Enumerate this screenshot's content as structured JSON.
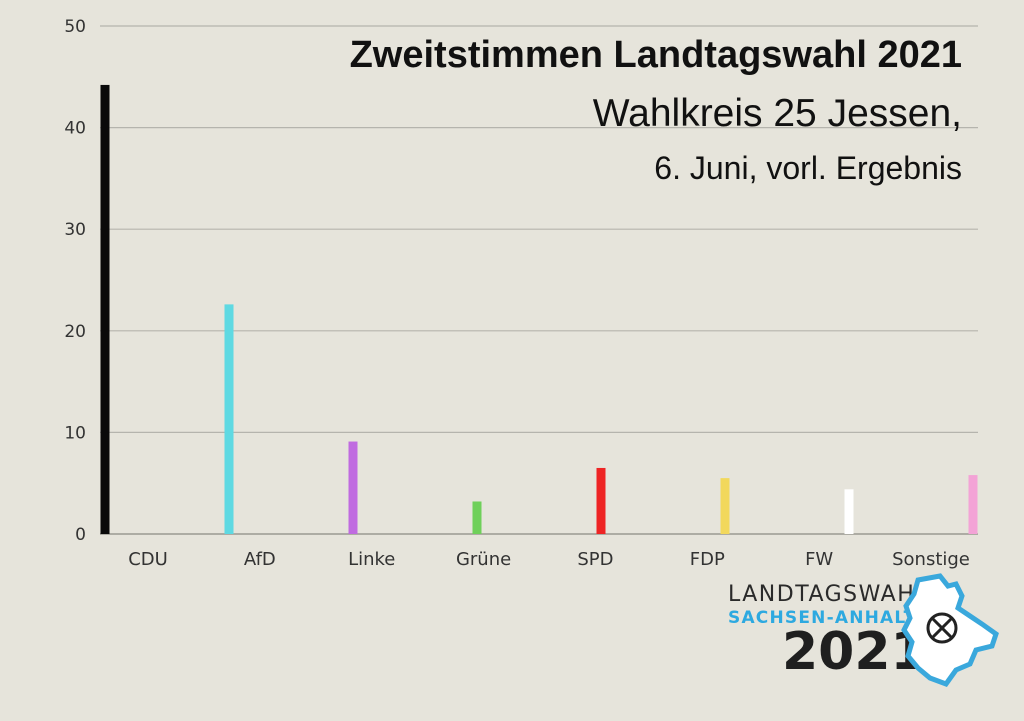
{
  "header": {
    "title": "Zweitstimmen Landtagswahl 2021",
    "subtitle_line1": "Wahlkreis 25 Jessen,",
    "subtitle_line2": "6. Juni, vorl. Ergebnis"
  },
  "logo": {
    "line1": "LANDTAGSWAHL",
    "line2": "SACHSEN-ANHALT",
    "year": "2021",
    "icon": "ballot-cross-map-icon"
  },
  "chart_data": {
    "type": "bar",
    "categories": [
      "CDU",
      "AfD",
      "Linke",
      "Grüne",
      "SPD",
      "FDP",
      "FW",
      "Sonstige"
    ],
    "values": [
      44.2,
      22.6,
      9.1,
      3.2,
      6.5,
      5.5,
      4.4,
      5.8
    ],
    "colors": [
      "#0a0a0a",
      "#5fd9e2",
      "#c06be0",
      "#6fd05a",
      "#ee2424",
      "#f2d85c",
      "#ffffff",
      "#f3a3d6"
    ],
    "ylim": [
      0,
      50
    ],
    "yticks": [
      0,
      10,
      20,
      30,
      40,
      50
    ],
    "xlabel": "",
    "ylabel": "",
    "grid": true
  }
}
